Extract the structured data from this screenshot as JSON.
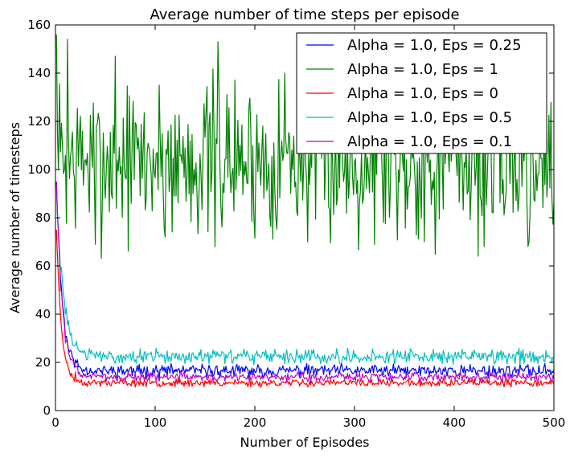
{
  "chart_data": {
    "type": "line",
    "title": "Average number of time steps per episode",
    "xlabel": "Number of Episodes",
    "ylabel": "Average number of timesteps",
    "xlim": [
      0,
      500
    ],
    "ylim": [
      0,
      160
    ],
    "xticks": [
      0,
      100,
      200,
      300,
      400,
      500
    ],
    "yticks": [
      0,
      20,
      40,
      60,
      80,
      100,
      120,
      140,
      160
    ],
    "legend_position": "top-right",
    "series": [
      {
        "name": "Alpha = 1.0, Eps = 0.25",
        "color": "#0000ff",
        "pattern": {
          "start": 95,
          "plateau": 16.5,
          "decay": 6,
          "noise": 2.0,
          "seed": 11
        },
        "key_points": [
          [
            1,
            95
          ],
          [
            5,
            55
          ],
          [
            10,
            30
          ],
          [
            20,
            21
          ],
          [
            50,
            17
          ],
          [
            100,
            17
          ],
          [
            200,
            16
          ],
          [
            300,
            16
          ],
          [
            400,
            16
          ],
          [
            500,
            17
          ]
        ]
      },
      {
        "name": "Alpha = 1.0, Eps = 1",
        "color": "#008000",
        "pattern": {
          "mean": 104,
          "noise": 16,
          "seed": 7
        },
        "key_points": [
          [
            1,
            156
          ],
          [
            3,
            100
          ],
          [
            12,
            154
          ],
          [
            40,
            69
          ],
          [
            60,
            147
          ],
          [
            110,
            72
          ],
          [
            160,
            68
          ],
          [
            163,
            153
          ],
          [
            230,
            140
          ],
          [
            370,
            70
          ],
          [
            430,
            68
          ],
          [
            475,
            70
          ],
          [
            500,
            86
          ]
        ]
      },
      {
        "name": "Alpha = 1.0, Eps = 0",
        "color": "#ff0000",
        "pattern": {
          "start": 75,
          "plateau": 11.5,
          "decay": 5,
          "noise": 1.2,
          "seed": 23
        },
        "key_points": [
          [
            1,
            75
          ],
          [
            5,
            40
          ],
          [
            10,
            22
          ],
          [
            20,
            16
          ],
          [
            50,
            13
          ],
          [
            100,
            12
          ],
          [
            200,
            11
          ],
          [
            300,
            12
          ],
          [
            400,
            11
          ],
          [
            500,
            11
          ]
        ]
      },
      {
        "name": "Alpha = 1.0, Eps = 0.5",
        "color": "#00bfbf",
        "pattern": {
          "start": 92,
          "plateau": 22.5,
          "decay": 7,
          "noise": 2.3,
          "seed": 31
        },
        "key_points": [
          [
            1,
            92
          ],
          [
            5,
            58
          ],
          [
            10,
            40
          ],
          [
            20,
            27
          ],
          [
            50,
            23
          ],
          [
            100,
            22
          ],
          [
            200,
            23
          ],
          [
            300,
            22
          ],
          [
            400,
            23
          ],
          [
            500,
            22
          ]
        ]
      },
      {
        "name": "Alpha = 1.0, Eps = 0.1",
        "color": "#bf00bf",
        "pattern": {
          "start": 95,
          "plateau": 14,
          "decay": 6,
          "noise": 1.5,
          "seed": 47
        },
        "key_points": [
          [
            1,
            95
          ],
          [
            5,
            50
          ],
          [
            10,
            28
          ],
          [
            20,
            18
          ],
          [
            50,
            15
          ],
          [
            100,
            14
          ],
          [
            200,
            14
          ],
          [
            300,
            14
          ],
          [
            400,
            14
          ],
          [
            500,
            13
          ]
        ]
      }
    ]
  }
}
